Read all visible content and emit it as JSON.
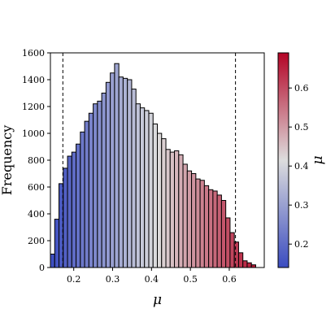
{
  "chart_data": {
    "type": "bar",
    "subtype": "histogram",
    "xlabel": "μ",
    "ylabel": "Frequency",
    "colorbar_label": "μ",
    "colormap": "coolwarm",
    "colormap_low": "#3b4cc0",
    "colormap_mid": "#dddddd",
    "colormap_high": "#b40426",
    "xlim": [
      0.14,
      0.69
    ],
    "ylim": [
      0,
      1600
    ],
    "xticks": [
      0.2,
      0.3,
      0.4,
      0.5,
      0.6
    ],
    "xtick_labels": [
      "0.2",
      "0.3",
      "0.4",
      "0.5",
      "0.6"
    ],
    "yticks": [
      0,
      200,
      400,
      600,
      800,
      1000,
      1200,
      1400,
      1600
    ],
    "ytick_labels": [
      "0",
      "200",
      "400",
      "600",
      "800",
      "1000",
      "1200",
      "1400",
      "1600"
    ],
    "colorbar_range": [
      0.14,
      0.69
    ],
    "colorbar_ticks": [
      0.2,
      0.3,
      0.4,
      0.5,
      0.6
    ],
    "colorbar_tick_labels": [
      "0.2",
      "0.3",
      "0.4",
      "0.5",
      "0.6"
    ],
    "vlines": [
      0.172,
      0.616
    ],
    "bin_start": 0.14,
    "bin_width": 0.011,
    "values": [
      100,
      360,
      625,
      740,
      830,
      860,
      920,
      1010,
      1090,
      1150,
      1220,
      1240,
      1300,
      1380,
      1450,
      1520,
      1420,
      1410,
      1400,
      1330,
      1220,
      1190,
      1170,
      1150,
      1070,
      1000,
      960,
      880,
      860,
      870,
      840,
      770,
      720,
      700,
      660,
      650,
      610,
      580,
      570,
      540,
      500,
      370,
      260,
      190,
      110,
      50,
      35,
      20
    ],
    "grid": false,
    "legend": "none"
  }
}
